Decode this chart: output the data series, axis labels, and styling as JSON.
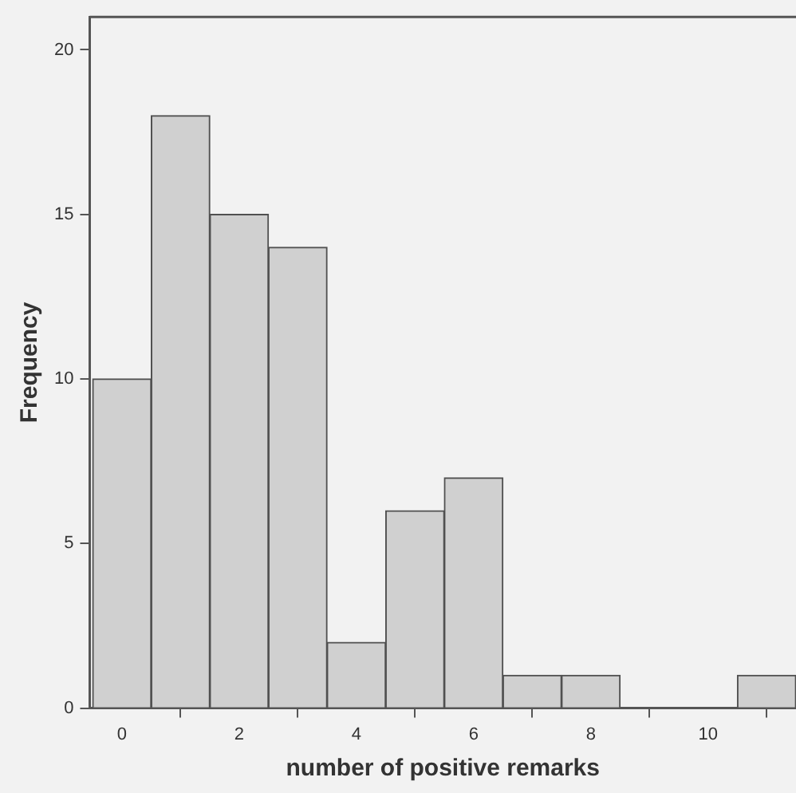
{
  "chart_data": {
    "type": "histogram",
    "xlabel": "number of positive remarks",
    "ylabel": "Frequency",
    "bins": [
      -0.5,
      0.5,
      1.5,
      2.5,
      3.5,
      4.5,
      5.5,
      6.5,
      7.5,
      8.5,
      9.5,
      10.5,
      11.5
    ],
    "values": [
      10,
      18,
      15,
      14,
      2,
      6,
      7,
      1,
      1,
      0,
      0,
      1
    ],
    "color": "#d0d0d0",
    "xlim": [
      -0.55,
      11.5
    ],
    "xticks": [
      0,
      2,
      4,
      6,
      8,
      10
    ],
    "ylim": [
      0,
      21
    ],
    "yticks": [
      0,
      5,
      10,
      15,
      20
    ],
    "grid": false,
    "legend": false
  }
}
